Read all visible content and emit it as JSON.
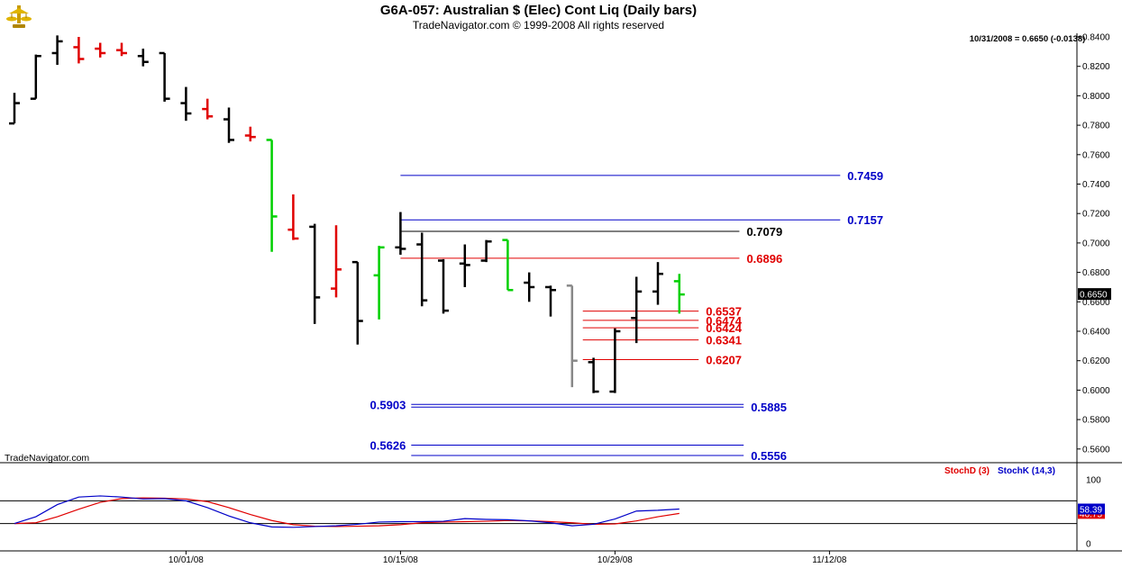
{
  "header": {
    "title": "G6A-057:  Australian $ (Elec) Cont Liq  (Daily bars)",
    "subtitle": "TradeNavigator.com © 1999-2008 All rights reserved",
    "last_quote": "10/31/2008 = 0.6650 (-0.0138)",
    "watermark": "TradeNavigator.com"
  },
  "colors": {
    "bar_default": "#000000",
    "bar_down": "#e00000",
    "bar_up": "#00d000",
    "bar_gray": "#888888",
    "level_blue": "#0000c8",
    "level_red": "#e00000",
    "stochD": "#e00000",
    "stochK": "#0000c8",
    "price_tag_bg": "#000000"
  },
  "chart_data": [
    {
      "type": "ohlc",
      "y_axis": {
        "min": 0.55,
        "max": 0.845,
        "ticks": [
          0.84,
          0.82,
          0.8,
          0.78,
          0.76,
          0.74,
          0.72,
          0.7,
          0.68,
          0.66,
          0.64,
          0.62,
          0.6,
          0.58,
          0.56
        ],
        "tick_labels": [
          "0.8400",
          "0.8200",
          "0.8000",
          "0.7800",
          "0.7600",
          "0.7400",
          "0.7200",
          "0.7000",
          "0.6800",
          "0.6600",
          "0.6400",
          "0.6200",
          "0.6000",
          "0.5800",
          "0.5600"
        ],
        "side": "right"
      },
      "x_axis": {
        "tick_labels": [
          "10/01/08",
          "10/15/08",
          "10/29/08",
          "11/12/08"
        ],
        "tick_bar_index": [
          8,
          18,
          28,
          38
        ]
      },
      "last_price_label": "0.6650",
      "bars": [
        {
          "o": 0.7812,
          "h": 0.802,
          "l": 0.7812,
          "c": 0.795,
          "color": "default"
        },
        {
          "o": 0.798,
          "h": 0.828,
          "l": 0.798,
          "c": 0.827,
          "color": "default"
        },
        {
          "o": 0.829,
          "h": 0.841,
          "l": 0.821,
          "c": 0.837,
          "color": "default"
        },
        {
          "o": 0.833,
          "h": 0.84,
          "l": 0.822,
          "c": 0.825,
          "color": "down"
        },
        {
          "o": 0.832,
          "h": 0.836,
          "l": 0.826,
          "c": 0.829,
          "color": "down"
        },
        {
          "o": 0.831,
          "h": 0.836,
          "l": 0.827,
          "c": 0.829,
          "color": "down"
        },
        {
          "o": 0.827,
          "h": 0.832,
          "l": 0.82,
          "c": 0.823,
          "color": "default"
        },
        {
          "o": 0.829,
          "h": 0.829,
          "l": 0.796,
          "c": 0.798,
          "color": "default"
        },
        {
          "o": 0.795,
          "h": 0.806,
          "l": 0.783,
          "c": 0.788,
          "color": "default"
        },
        {
          "o": 0.791,
          "h": 0.798,
          "l": 0.784,
          "c": 0.786,
          "color": "down"
        },
        {
          "o": 0.784,
          "h": 0.792,
          "l": 0.768,
          "c": 0.77,
          "color": "default"
        },
        {
          "o": 0.773,
          "h": 0.779,
          "l": 0.769,
          "c": 0.772,
          "color": "down"
        },
        {
          "o": 0.77,
          "h": 0.77,
          "l": 0.694,
          "c": 0.718,
          "color": "up"
        },
        {
          "o": 0.709,
          "h": 0.733,
          "l": 0.702,
          "c": 0.703,
          "color": "down"
        },
        {
          "o": 0.711,
          "h": 0.713,
          "l": 0.645,
          "c": 0.663,
          "color": "default"
        },
        {
          "o": 0.669,
          "h": 0.712,
          "l": 0.663,
          "c": 0.682,
          "color": "down"
        },
        {
          "o": 0.687,
          "h": 0.687,
          "l": 0.631,
          "c": 0.647,
          "color": "default"
        },
        {
          "o": 0.678,
          "h": 0.698,
          "l": 0.648,
          "c": 0.697,
          "color": "up"
        },
        {
          "o": 0.697,
          "h": 0.721,
          "l": 0.692,
          "c": 0.696,
          "color": "default"
        },
        {
          "o": 0.699,
          "h": 0.707,
          "l": 0.657,
          "c": 0.661,
          "color": "default"
        },
        {
          "o": 0.688,
          "h": 0.689,
          "l": 0.652,
          "c": 0.654,
          "color": "default"
        },
        {
          "o": 0.686,
          "h": 0.699,
          "l": 0.67,
          "c": 0.685,
          "color": "default"
        },
        {
          "o": 0.688,
          "h": 0.702,
          "l": 0.687,
          "c": 0.701,
          "color": "default"
        },
        {
          "o": 0.702,
          "h": 0.702,
          "l": 0.668,
          "c": 0.668,
          "color": "up"
        },
        {
          "o": 0.673,
          "h": 0.68,
          "l": 0.66,
          "c": 0.67,
          "color": "default"
        },
        {
          "o": 0.67,
          "h": 0.671,
          "l": 0.65,
          "c": 0.668,
          "color": "default"
        },
        {
          "o": 0.671,
          "h": 0.671,
          "l": 0.602,
          "c": 0.62,
          "color": "gray"
        },
        {
          "o": 0.619,
          "h": 0.622,
          "l": 0.598,
          "c": 0.599,
          "color": "default"
        },
        {
          "o": 0.599,
          "h": 0.642,
          "l": 0.598,
          "c": 0.64,
          "color": "default"
        },
        {
          "o": 0.649,
          "h": 0.677,
          "l": 0.632,
          "c": 0.667,
          "color": "default"
        },
        {
          "o": 0.667,
          "h": 0.687,
          "l": 0.658,
          "c": 0.679,
          "color": "default"
        },
        {
          "o": 0.674,
          "h": 0.679,
          "l": 0.652,
          "c": 0.665,
          "color": "up"
        }
      ],
      "levels": [
        {
          "value": 0.7459,
          "label": "0.7459",
          "color": "blue",
          "x_start_bar": 18.0,
          "x_end_bar": 38.5,
          "label_side": "right"
        },
        {
          "value": 0.7157,
          "label": "0.7157",
          "color": "blue",
          "x_start_bar": 18.0,
          "x_end_bar": 38.5,
          "label_side": "right"
        },
        {
          "value": 0.7079,
          "label": "0.7079",
          "color": "black",
          "x_start_bar": 18.0,
          "x_end_bar": 33.8,
          "label_side": "right"
        },
        {
          "value": 0.6896,
          "label": "0.6896",
          "color": "red",
          "x_start_bar": 18.0,
          "x_end_bar": 33.8,
          "label_side": "right"
        },
        {
          "value": 0.6537,
          "label": "0.6537",
          "color": "red",
          "x_start_bar": 26.5,
          "x_end_bar": 31.9,
          "label_side": "right"
        },
        {
          "value": 0.6474,
          "label": "0.6474",
          "color": "red",
          "x_start_bar": 26.5,
          "x_end_bar": 31.9,
          "label_side": "right"
        },
        {
          "value": 0.6424,
          "label": "0.6424",
          "color": "red",
          "x_start_bar": 26.5,
          "x_end_bar": 31.9,
          "label_side": "right"
        },
        {
          "value": 0.6341,
          "label": "0.6341",
          "color": "red",
          "x_start_bar": 26.5,
          "x_end_bar": 31.9,
          "label_side": "right"
        },
        {
          "value": 0.6207,
          "label": "0.6207",
          "color": "red",
          "x_start_bar": 26.5,
          "x_end_bar": 31.9,
          "label_side": "right"
        },
        {
          "value": 0.5903,
          "label": "0.5903",
          "color": "blue",
          "x_start_bar": 18.5,
          "x_end_bar": 34.0,
          "label_side": "left"
        },
        {
          "value": 0.5885,
          "label": "0.5885",
          "color": "blue",
          "x_start_bar": 18.5,
          "x_end_bar": 34.0,
          "label_side": "right"
        },
        {
          "value": 0.5626,
          "label": "0.5626",
          "color": "blue",
          "x_start_bar": 18.5,
          "x_end_bar": 34.0,
          "label_side": "left"
        },
        {
          "value": 0.5556,
          "label": "0.5556",
          "color": "blue",
          "x_start_bar": 18.5,
          "x_end_bar": 34.0,
          "label_side": "right"
        }
      ]
    },
    {
      "type": "line",
      "legend": [
        "StochD (3)",
        "StochK (14,3)"
      ],
      "y_axis": {
        "min": 0,
        "max": 100,
        "ticks": [
          0,
          100
        ],
        "tick_labels": [
          "0",
          "100"
        ],
        "side": "right"
      },
      "guide_lines": [
        80,
        20
      ],
      "series": [
        {
          "name": "StochD (3)",
          "color_key": "stochD",
          "last_label": "46.75",
          "values": [
            20,
            22,
            38,
            58,
            76,
            86,
            88,
            87,
            85,
            78,
            62,
            44,
            28,
            17,
            13,
            12,
            13,
            14,
            17,
            22,
            24,
            25,
            26,
            28,
            27,
            25,
            22,
            18,
            19,
            27,
            38,
            46.75
          ]
        },
        {
          "name": "StochK (14,3)",
          "color_key": "stochK",
          "last_label": "58.39",
          "values": [
            20,
            38,
            70,
            90,
            93,
            90,
            85,
            86,
            80,
            62,
            40,
            22,
            11,
            10,
            12,
            14,
            18,
            24,
            25,
            25,
            26,
            33,
            31,
            30,
            27,
            22,
            14,
            18,
            32,
            53,
            55,
            58.39
          ]
        }
      ]
    }
  ]
}
